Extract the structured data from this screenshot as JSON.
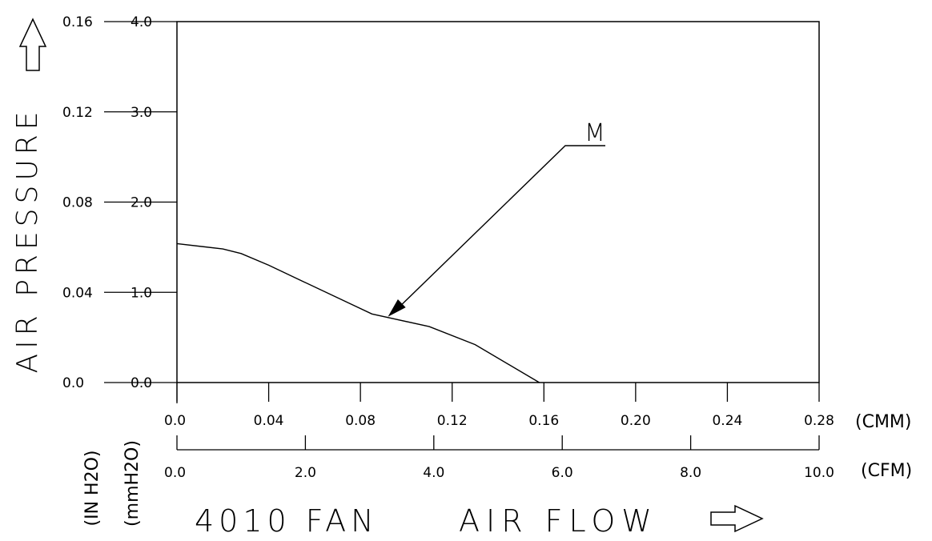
{
  "chart_data": {
    "type": "line",
    "title": "",
    "xlabel": "AIR FLOW",
    "xlabel_prefix": "4010 FAN",
    "ylabel": "AIR PRESSURE",
    "x_axes": [
      {
        "unit": "(CMM)",
        "range": [
          0,
          0.28
        ],
        "ticks": [
          0,
          0.04,
          0.08,
          0.12,
          0.16,
          0.2,
          0.24,
          0.28
        ],
        "tick_labels": [
          "0.0",
          "0.04",
          "0.08",
          "0.12",
          "0.16",
          "0.20",
          "0.24",
          "0.28"
        ]
      },
      {
        "unit": "(CFM)",
        "range": [
          0,
          10
        ],
        "ticks": [
          0,
          2,
          4,
          6,
          8,
          10
        ],
        "tick_labels": [
          "0.0",
          "2.0",
          "4.0",
          "6.0",
          "8.0",
          "10.0"
        ]
      }
    ],
    "y_axes": [
      {
        "unit": "(IN H2O)",
        "range": [
          0,
          0.16
        ],
        "ticks": [
          0,
          0.04,
          0.08,
          0.12,
          0.16
        ],
        "tick_labels": [
          "0.0",
          "0.04",
          "0.08",
          "0.12",
          "0.16"
        ]
      },
      {
        "unit": "(mmH2O)",
        "range": [
          0,
          4
        ],
        "ticks": [
          0,
          1,
          2,
          3,
          4
        ],
        "tick_labels": [
          "0.0",
          "1.0",
          "2.0",
          "3.0",
          "4.0"
        ]
      }
    ],
    "series": [
      {
        "name": "M",
        "x_unit": "CMM",
        "y_unit": "mmH2O",
        "points": [
          [
            0.0,
            1.54
          ],
          [
            0.02,
            1.48
          ],
          [
            0.028,
            1.43
          ],
          [
            0.04,
            1.3
          ],
          [
            0.055,
            1.12
          ],
          [
            0.085,
            0.76
          ],
          [
            0.11,
            0.62
          ],
          [
            0.13,
            0.42
          ],
          [
            0.158,
            0.0
          ]
        ]
      }
    ],
    "annotation": {
      "label": "M",
      "points_to": [
        0.092,
        0.73
      ]
    },
    "grid": false
  }
}
